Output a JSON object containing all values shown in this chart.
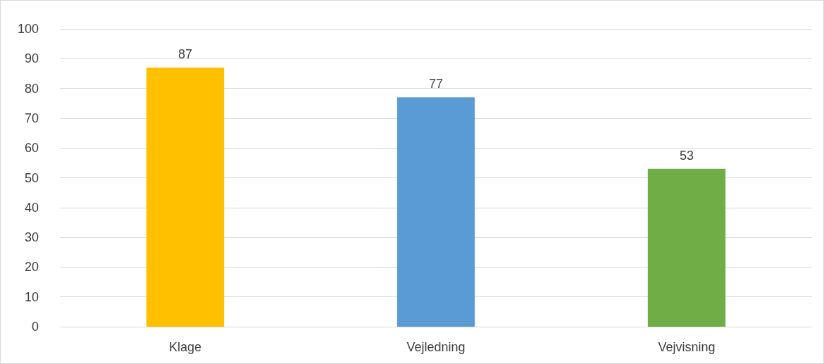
{
  "chart_data": {
    "type": "bar",
    "categories": [
      "Klage",
      "Vejledning",
      "Vejvisning"
    ],
    "values": [
      87,
      77,
      53
    ],
    "colors": [
      "#ffc000",
      "#5b9bd5",
      "#70ad47"
    ],
    "ylim": [
      0,
      100
    ],
    "yticks": [
      0,
      10,
      20,
      30,
      40,
      50,
      60,
      70,
      80,
      90,
      100
    ],
    "grid": "y",
    "data_labels": true
  }
}
